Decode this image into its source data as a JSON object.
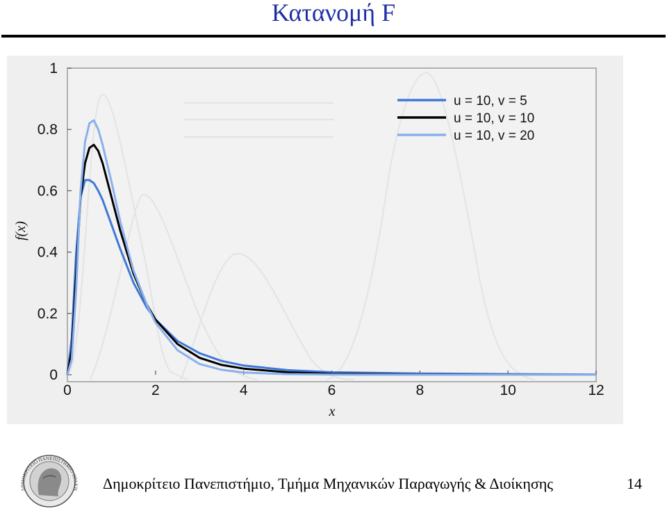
{
  "slide": {
    "title": "Κατανομή F",
    "footer": "Δημοκρίτειο Πανεπιστήμιο, Τμήμα Μηχανικών Παραγωγής & Διοίκησης",
    "page_number": "14",
    "logo_text": "ΔΗΜΟΚΡΙΤΕΙΟ ΠΑΝΕΠΙΣΤΗΜΙΟ ΘΡΑΚΗΣ"
  },
  "colors": {
    "title": "#1f2fa6",
    "series_v5": "#3f78d8",
    "series_v10": "#000000",
    "series_v20": "#8ab0ec",
    "ghost_curves": "#dadada",
    "chart_background": "#efefef"
  },
  "chart_data": {
    "type": "line",
    "title": "",
    "xlabel": "x",
    "ylabel": "f(x)",
    "xlim": [
      0,
      12
    ],
    "ylim": [
      0,
      1
    ],
    "x_ticks": [
      "0",
      "2",
      "4",
      "6",
      "8",
      "10",
      "12"
    ],
    "y_ticks": [
      "0",
      "0.2",
      "0.4",
      "0.6",
      "0.8",
      "1"
    ],
    "grid": false,
    "legend_position": "top-right",
    "series": [
      {
        "name": "u = 10, v = 5",
        "x": [
          0,
          0.1,
          0.2,
          0.3,
          0.4,
          0.5,
          0.6,
          0.7,
          0.8,
          1.0,
          1.2,
          1.5,
          1.8,
          2.0,
          2.5,
          3.0,
          3.5,
          4.0,
          5.0,
          6.0,
          8.0,
          10.0,
          12.0
        ],
        "y": [
          0,
          0.12,
          0.4,
          0.58,
          0.635,
          0.635,
          0.625,
          0.6,
          0.57,
          0.49,
          0.41,
          0.3,
          0.22,
          0.18,
          0.11,
          0.07,
          0.045,
          0.03,
          0.015,
          0.008,
          0.004,
          0.002,
          0.001
        ]
      },
      {
        "name": "u = 10, v = 10",
        "x": [
          0,
          0.1,
          0.2,
          0.3,
          0.4,
          0.5,
          0.6,
          0.7,
          0.8,
          1.0,
          1.2,
          1.5,
          1.8,
          2.0,
          2.5,
          3.0,
          3.5,
          4.0,
          5.0,
          6.0,
          8.0,
          10.0,
          12.0
        ],
        "y": [
          0,
          0.08,
          0.33,
          0.58,
          0.69,
          0.74,
          0.75,
          0.73,
          0.69,
          0.58,
          0.47,
          0.33,
          0.23,
          0.18,
          0.1,
          0.055,
          0.032,
          0.02,
          0.008,
          0.003,
          0.001,
          0.0005,
          0
        ]
      },
      {
        "name": "u = 10, v = 20",
        "x": [
          0,
          0.1,
          0.2,
          0.3,
          0.4,
          0.5,
          0.6,
          0.7,
          0.8,
          1.0,
          1.2,
          1.5,
          1.8,
          2.0,
          2.5,
          3.0,
          3.5,
          4.0,
          5.0,
          6.0,
          8.0,
          10.0,
          12.0
        ],
        "y": [
          0,
          0.05,
          0.28,
          0.6,
          0.76,
          0.82,
          0.83,
          0.8,
          0.75,
          0.63,
          0.5,
          0.34,
          0.23,
          0.17,
          0.08,
          0.035,
          0.016,
          0.007,
          0.002,
          0.0005,
          0,
          0,
          0
        ]
      }
    ]
  }
}
